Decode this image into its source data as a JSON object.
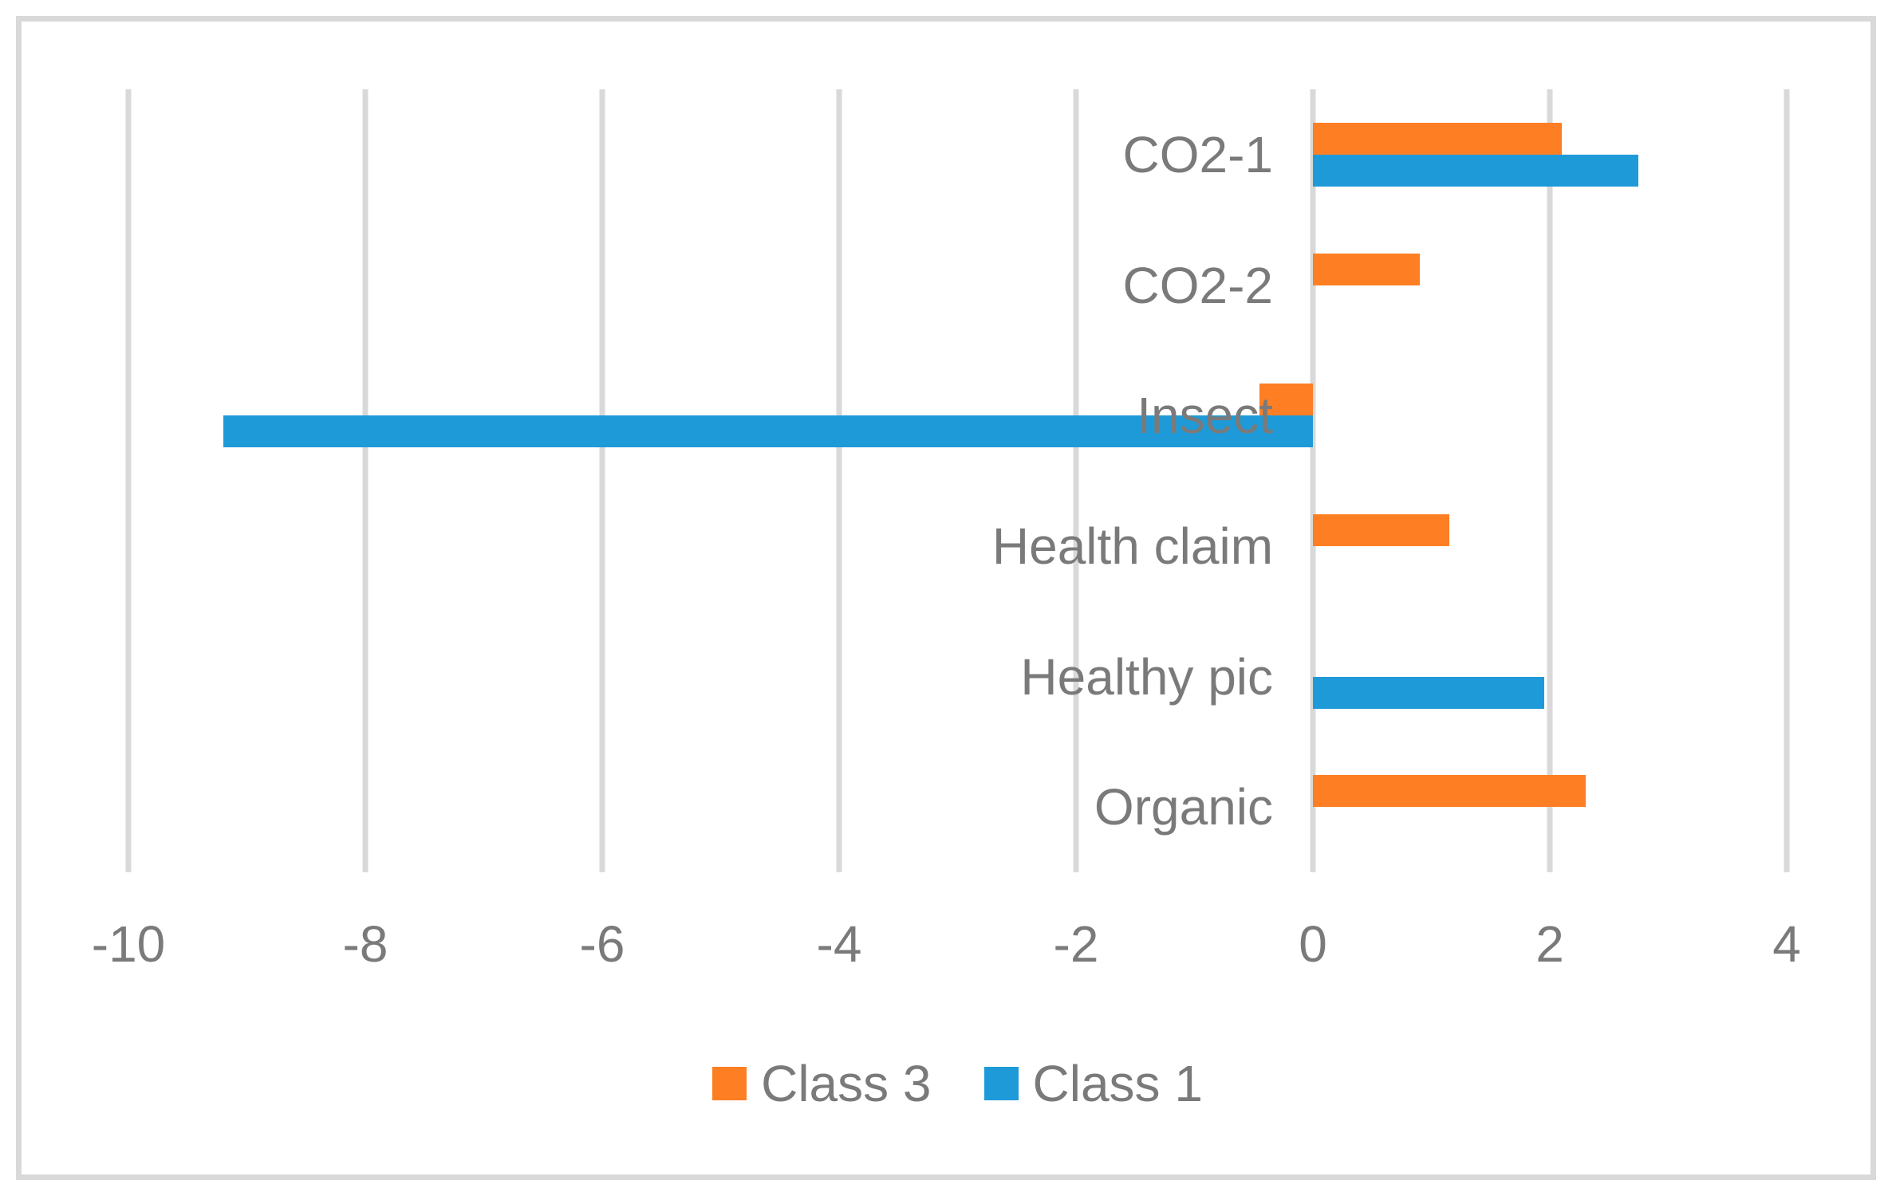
{
  "chart_data": {
    "type": "bar",
    "orientation": "horizontal",
    "title": "",
    "xlabel": "",
    "ylabel": "",
    "categories": [
      "CO2-1",
      "CO2-2",
      "Insect",
      "Health claim",
      "Healthy pic",
      "Organic"
    ],
    "series": [
      {
        "name": "Class 3",
        "color": "#fd7e23",
        "values": [
          2.1,
          0.9,
          -0.45,
          1.15,
          null,
          2.3
        ]
      },
      {
        "name": "Class 1",
        "color": "#1f9ad8",
        "values": [
          2.75,
          null,
          -9.2,
          null,
          1.95,
          null
        ]
      }
    ],
    "xlim": [
      -10,
      4
    ],
    "x_ticks": [
      -10,
      -8,
      -6,
      -4,
      -2,
      0,
      2,
      4
    ],
    "x_tick_labels": [
      "-10",
      "-8",
      "-6",
      "-4",
      "-2",
      "0",
      "2",
      "4"
    ],
    "grid": "vertical-gridlines-on",
    "legend_position": "bottom-center",
    "legend_entries": [
      "Class 3",
      "Class 1"
    ],
    "colors": {
      "class3_orange": "#fd7e23",
      "class1_blue": "#1f9ad8",
      "gridline": "#d9d9d9",
      "frame_border": "#d9d9d9",
      "axis_text": "#7a7a7a",
      "background": "#ffffff"
    }
  }
}
